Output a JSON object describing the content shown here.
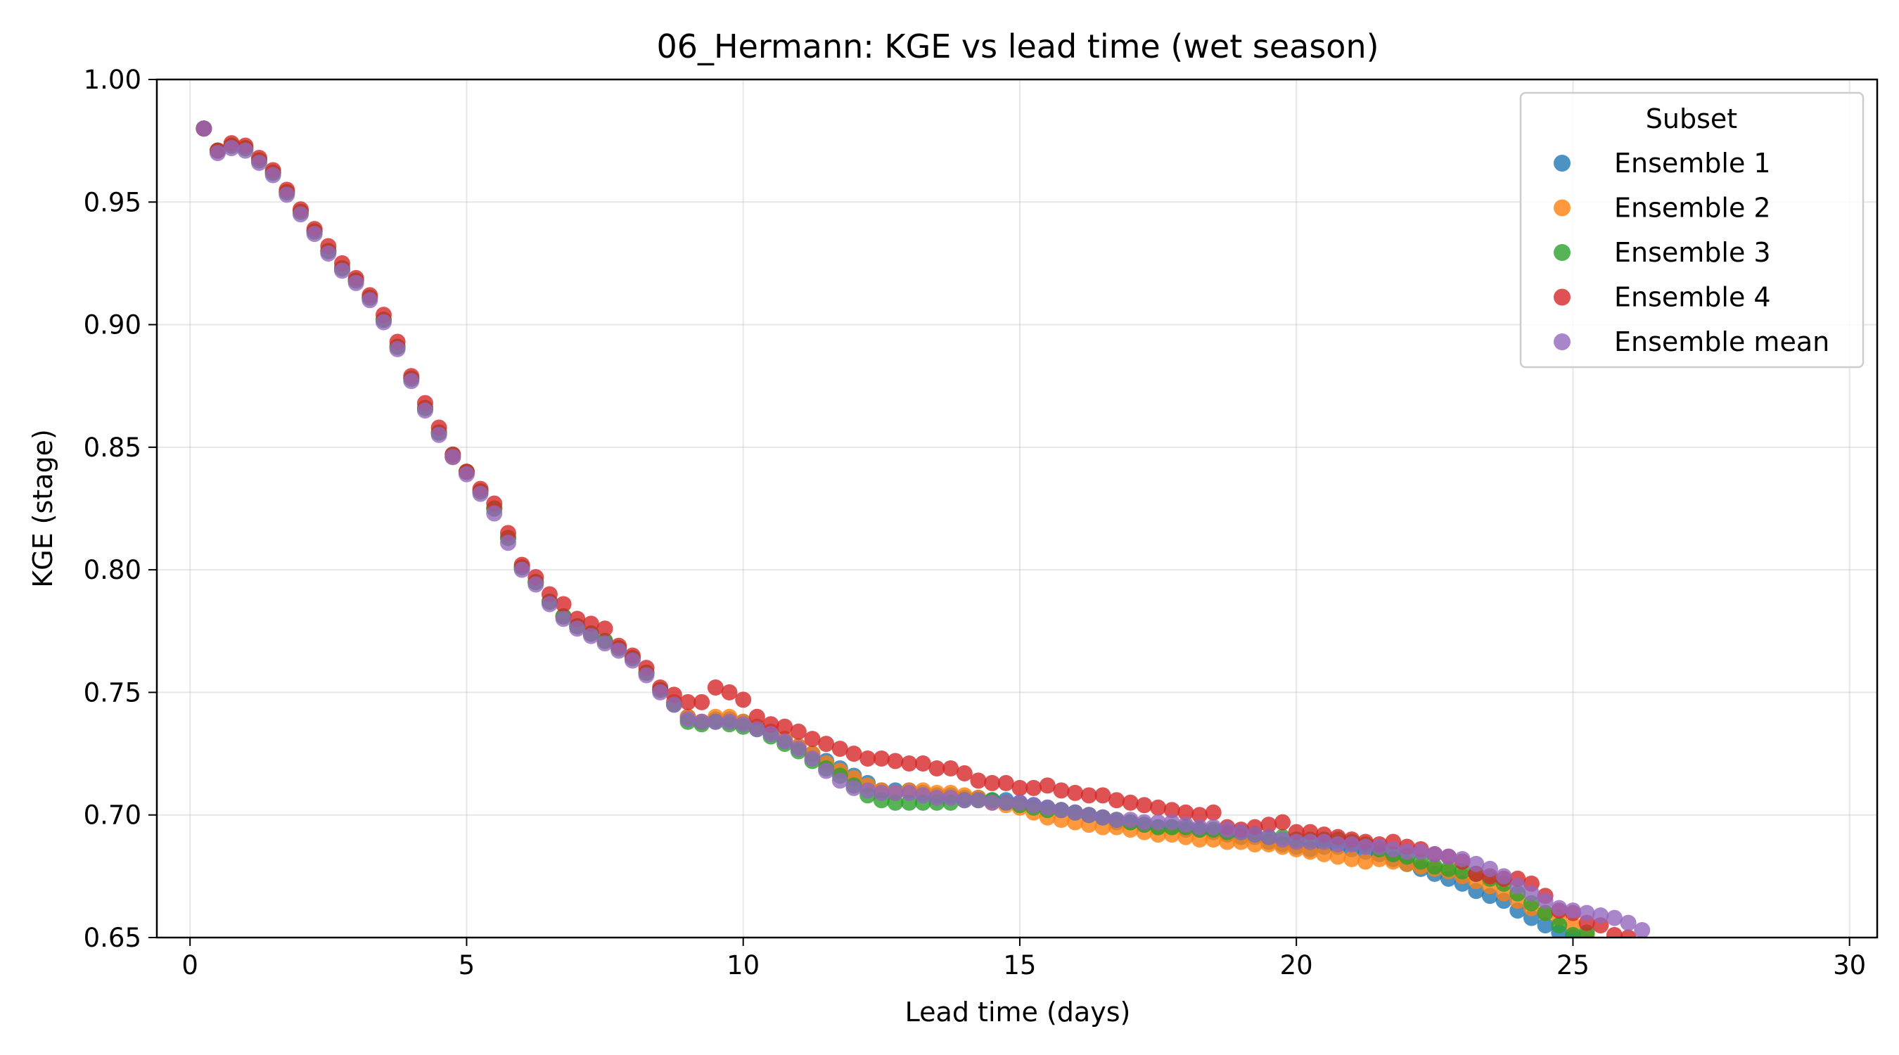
{
  "chart_data": {
    "type": "scatter",
    "title": "06_Hermann: KGE vs lead time (wet season)",
    "xlabel": "Lead time (days)",
    "ylabel": "KGE (stage)",
    "xlim": [
      -0.6,
      30.5
    ],
    "ylim": [
      0.65,
      1.0
    ],
    "x_ticks": [
      0,
      5,
      10,
      15,
      20,
      25,
      30
    ],
    "y_ticks": [
      0.65,
      0.7,
      0.75,
      0.8,
      0.85,
      0.9,
      0.95,
      1.0
    ],
    "x_tick_labels": [
      "0",
      "5",
      "10",
      "15",
      "20",
      "25",
      "30"
    ],
    "y_tick_labels": [
      "0.65",
      "0.70",
      "0.75",
      "0.80",
      "0.85",
      "0.90",
      "0.95",
      "1.00"
    ],
    "grid": true,
    "legend": {
      "title": "Subset",
      "placement": "top-right"
    },
    "x_step": 0.25,
    "series": [
      {
        "name": "Ensemble 1",
        "color": "#1f77b4",
        "x_start": 0.25,
        "values": [
          0.98,
          0.971,
          0.973,
          0.972,
          0.967,
          0.962,
          0.954,
          0.946,
          0.938,
          0.93,
          0.923,
          0.918,
          0.911,
          0.902,
          0.891,
          0.878,
          0.866,
          0.856,
          0.846,
          0.84,
          0.832,
          0.825,
          0.813,
          0.801,
          0.795,
          0.787,
          0.781,
          0.777,
          0.774,
          0.771,
          0.768,
          0.764,
          0.758,
          0.751,
          0.746,
          0.74,
          0.738,
          0.739,
          0.739,
          0.738,
          0.736,
          0.734,
          0.731,
          0.728,
          0.725,
          0.722,
          0.719,
          0.716,
          0.713,
          0.71,
          0.71,
          0.71,
          0.709,
          0.708,
          0.708,
          0.707,
          0.707,
          0.706,
          0.706,
          0.705,
          0.704,
          0.703,
          0.702,
          0.701,
          0.7,
          0.699,
          0.697,
          0.697,
          0.696,
          0.695,
          0.695,
          0.694,
          0.694,
          0.693,
          0.692,
          0.691,
          0.691,
          0.689,
          0.688,
          0.687,
          0.686,
          0.687,
          0.687,
          0.686,
          0.685,
          0.684,
          0.682,
          0.68,
          0.678,
          0.676,
          0.674,
          0.672,
          0.669,
          0.667,
          0.665,
          0.661,
          0.658,
          0.655,
          0.652,
          0.65,
          0.648
        ]
      },
      {
        "name": "Ensemble 2",
        "color": "#ff7f0e",
        "x_start": 0.25,
        "values": [
          0.98,
          0.971,
          0.973,
          0.972,
          0.967,
          0.962,
          0.954,
          0.946,
          0.938,
          0.93,
          0.923,
          0.918,
          0.911,
          0.902,
          0.891,
          0.878,
          0.866,
          0.856,
          0.846,
          0.84,
          0.832,
          0.825,
          0.813,
          0.801,
          0.795,
          0.787,
          0.781,
          0.777,
          0.774,
          0.771,
          0.768,
          0.764,
          0.758,
          0.751,
          0.746,
          0.74,
          0.738,
          0.74,
          0.74,
          0.738,
          0.736,
          0.734,
          0.731,
          0.728,
          0.725,
          0.721,
          0.718,
          0.715,
          0.712,
          0.71,
          0.709,
          0.71,
          0.71,
          0.709,
          0.709,
          0.708,
          0.707,
          0.705,
          0.704,
          0.703,
          0.701,
          0.699,
          0.698,
          0.697,
          0.696,
          0.695,
          0.695,
          0.694,
          0.693,
          0.692,
          0.692,
          0.691,
          0.69,
          0.69,
          0.689,
          0.689,
          0.688,
          0.688,
          0.687,
          0.686,
          0.685,
          0.684,
          0.683,
          0.682,
          0.681,
          0.682,
          0.681,
          0.68,
          0.679,
          0.678,
          0.677,
          0.675,
          0.673,
          0.671,
          0.668,
          0.665,
          0.662,
          0.66,
          0.658,
          0.655,
          0.651
        ]
      },
      {
        "name": "Ensemble 3",
        "color": "#2ca02c",
        "x_start": 0.25,
        "values": [
          0.98,
          0.971,
          0.973,
          0.972,
          0.967,
          0.962,
          0.954,
          0.946,
          0.938,
          0.93,
          0.923,
          0.918,
          0.911,
          0.902,
          0.891,
          0.878,
          0.866,
          0.856,
          0.847,
          0.84,
          0.832,
          0.825,
          0.813,
          0.801,
          0.795,
          0.787,
          0.781,
          0.777,
          0.774,
          0.771,
          0.768,
          0.764,
          0.758,
          0.751,
          0.745,
          0.738,
          0.737,
          0.738,
          0.737,
          0.736,
          0.735,
          0.732,
          0.729,
          0.726,
          0.722,
          0.719,
          0.716,
          0.712,
          0.708,
          0.706,
          0.705,
          0.705,
          0.705,
          0.705,
          0.705,
          0.706,
          0.706,
          0.706,
          0.705,
          0.704,
          0.703,
          0.702,
          0.702,
          0.701,
          0.7,
          0.699,
          0.698,
          0.697,
          0.696,
          0.695,
          0.695,
          0.695,
          0.694,
          0.694,
          0.693,
          0.693,
          0.692,
          0.691,
          0.691,
          0.69,
          0.69,
          0.69,
          0.69,
          0.689,
          0.688,
          0.686,
          0.684,
          0.683,
          0.681,
          0.679,
          0.678,
          0.677,
          0.676,
          0.674,
          0.672,
          0.668,
          0.664,
          0.66,
          0.655,
          0.651,
          0.652
        ]
      },
      {
        "name": "Ensemble 4",
        "color": "#d62728",
        "x_start": 0.25,
        "values": [
          0.98,
          0.971,
          0.974,
          0.973,
          0.968,
          0.963,
          0.955,
          0.947,
          0.939,
          0.932,
          0.925,
          0.919,
          0.912,
          0.904,
          0.893,
          0.879,
          0.868,
          0.858,
          0.847,
          0.84,
          0.833,
          0.827,
          0.815,
          0.802,
          0.797,
          0.79,
          0.786,
          0.78,
          0.778,
          0.776,
          0.769,
          0.765,
          0.76,
          0.752,
          0.749,
          0.746,
          0.746,
          0.752,
          0.75,
          0.747,
          0.74,
          0.737,
          0.736,
          0.734,
          0.731,
          0.729,
          0.727,
          0.725,
          0.723,
          0.723,
          0.722,
          0.721,
          0.721,
          0.719,
          0.719,
          0.717,
          0.714,
          0.713,
          0.713,
          0.711,
          0.711,
          0.712,
          0.71,
          0.709,
          0.708,
          0.708,
          0.706,
          0.705,
          0.704,
          0.703,
          0.702,
          0.701,
          0.7,
          0.701,
          0.695,
          0.694,
          0.695,
          0.696,
          0.697,
          0.693,
          0.693,
          0.692,
          0.691,
          0.69,
          0.689,
          0.688,
          0.689,
          0.687,
          0.686,
          0.684,
          0.683,
          0.681,
          0.676,
          0.675,
          0.674,
          0.674,
          0.672,
          0.667,
          0.661,
          0.66,
          0.656,
          0.655,
          0.651,
          0.65
        ]
      },
      {
        "name": "Ensemble mean",
        "color": "#9467bd",
        "x_start": 0.25,
        "values": [
          0.98,
          0.97,
          0.972,
          0.971,
          0.966,
          0.961,
          0.953,
          0.945,
          0.937,
          0.929,
          0.922,
          0.917,
          0.91,
          0.901,
          0.89,
          0.877,
          0.865,
          0.855,
          0.846,
          0.839,
          0.831,
          0.823,
          0.811,
          0.8,
          0.794,
          0.786,
          0.78,
          0.776,
          0.773,
          0.77,
          0.767,
          0.763,
          0.757,
          0.75,
          0.745,
          0.739,
          0.738,
          0.738,
          0.738,
          0.737,
          0.735,
          0.733,
          0.73,
          0.727,
          0.723,
          0.718,
          0.714,
          0.711,
          0.71,
          0.709,
          0.709,
          0.709,
          0.708,
          0.707,
          0.707,
          0.706,
          0.706,
          0.705,
          0.705,
          0.705,
          0.704,
          0.703,
          0.702,
          0.701,
          0.7,
          0.699,
          0.698,
          0.698,
          0.697,
          0.697,
          0.697,
          0.696,
          0.695,
          0.695,
          0.694,
          0.693,
          0.692,
          0.691,
          0.69,
          0.689,
          0.689,
          0.689,
          0.688,
          0.688,
          0.687,
          0.687,
          0.686,
          0.685,
          0.685,
          0.684,
          0.683,
          0.682,
          0.68,
          0.678,
          0.675,
          0.671,
          0.668,
          0.665,
          0.662,
          0.661,
          0.66,
          0.659,
          0.658,
          0.656,
          0.653
        ]
      }
    ]
  }
}
